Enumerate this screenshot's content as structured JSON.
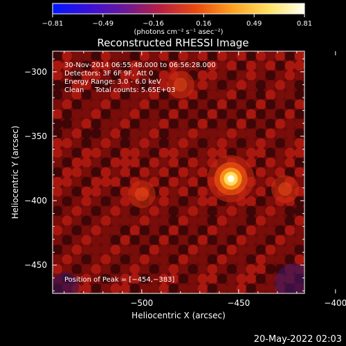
{
  "colorbar": {
    "ticks": [
      "-0.81",
      "-0.49",
      "-0.16",
      "0.16",
      "0.49",
      "0.81"
    ],
    "units": "(photons cm⁻² s⁻¹ asec⁻²)",
    "range": [
      -0.81,
      0.81
    ],
    "colors": [
      "#0018ff",
      "#3a10d8",
      "#6a1898",
      "#b82040",
      "#e84a10",
      "#ffa020",
      "#ffe060",
      "#fffff0"
    ]
  },
  "chart_data": {
    "type": "heatmap",
    "title": "Reconstructed RHESSI Image",
    "xlabel": "Heliocentric X (arcsec)",
    "ylabel": "Heliocentric Y (arcsec)",
    "xlim": [
      -546,
      -416
    ],
    "ylim": [
      -472,
      -284
    ],
    "xticks": [
      -500,
      -450,
      -400
    ],
    "xtick_labels": [
      "−500",
      "−450",
      "−400"
    ],
    "yticks": [
      -300,
      -350,
      -400,
      -450
    ],
    "ytick_labels": [
      "−300",
      "−350",
      "−400",
      "−450"
    ],
    "peak": [
      -454,
      -383
    ],
    "secondary_sources": [
      [
        -426,
        -391
      ],
      [
        -500,
        -395
      ],
      [
        -480,
        -310
      ]
    ],
    "info_lines": [
      "30-Nov-2014 06:55:48.000 to 06:56:28.000",
      "Detectors: 3F 6F 9F, Att 0",
      "Energy Range: 3.0 - 6.0 keV",
      "Clean     Total counts: 5.65E+03"
    ],
    "peak_label": "Position of Peak = [−454,−383]"
  },
  "footer": {
    "date": "20-May-2022 02:03"
  }
}
